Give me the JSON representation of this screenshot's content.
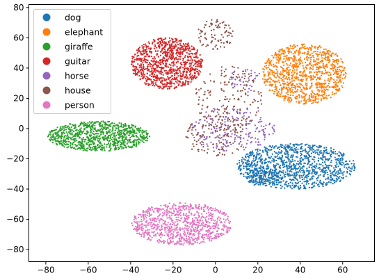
{
  "chart_data": {
    "type": "scatter",
    "title": "",
    "xlabel": "",
    "ylabel": "",
    "xlim": [
      -88,
      75
    ],
    "ylim": [
      -88,
      82
    ],
    "xticks": [
      -80,
      -60,
      -40,
      -20,
      0,
      20,
      40,
      60
    ],
    "yticks": [
      -80,
      -60,
      -40,
      -20,
      0,
      20,
      40,
      60,
      80
    ],
    "grid": false,
    "legend_position": "top-left",
    "series": [
      {
        "name": "dog",
        "color": "#1f77b4",
        "clusters": [
          {
            "cx": 38,
            "cy": -25,
            "rx": 28,
            "ry": 15,
            "n": 1100
          },
          {
            "cx": 22,
            "cy": -32,
            "rx": 8,
            "ry": 6,
            "n": 120
          }
        ]
      },
      {
        "name": "elephant",
        "color": "#ff7f0e",
        "clusters": [
          {
            "cx": 42,
            "cy": 36,
            "rx": 20,
            "ry": 20,
            "n": 1000
          }
        ]
      },
      {
        "name": "giraffe",
        "color": "#2ca02c",
        "clusters": [
          {
            "cx": -55,
            "cy": -5,
            "rx": 24,
            "ry": 10,
            "n": 900
          }
        ]
      },
      {
        "name": "guitar",
        "color": "#d62728",
        "clusters": [
          {
            "cx": -23,
            "cy": 43,
            "rx": 17,
            "ry": 17,
            "n": 950
          }
        ]
      },
      {
        "name": "horse",
        "color": "#9467bd",
        "clusters": [
          {
            "cx": 8,
            "cy": 0,
            "rx": 20,
            "ry": 15,
            "n": 220
          },
          {
            "cx": 14,
            "cy": 32,
            "rx": 8,
            "ry": 8,
            "n": 40
          }
        ]
      },
      {
        "name": "house",
        "color": "#8c564b",
        "clusters": [
          {
            "cx": 0,
            "cy": 62,
            "rx": 9,
            "ry": 10,
            "n": 90
          },
          {
            "cx": 6,
            "cy": 20,
            "rx": 16,
            "ry": 22,
            "n": 170
          },
          {
            "cx": 0,
            "cy": -5,
            "rx": 15,
            "ry": 14,
            "n": 110
          }
        ]
      },
      {
        "name": "person",
        "color": "#e377c2",
        "clusters": [
          {
            "cx": -16,
            "cy": -63,
            "rx": 24,
            "ry": 14,
            "n": 900
          }
        ]
      }
    ]
  }
}
